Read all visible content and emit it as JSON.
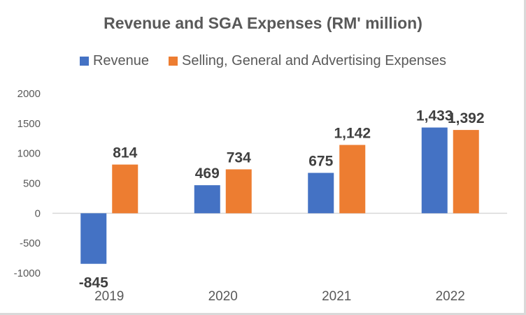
{
  "chart_data": {
    "type": "bar",
    "title": "Revenue and SGA Expenses (RM' million)",
    "xlabel": "",
    "ylabel": "",
    "categories": [
      "2019",
      "2020",
      "2021",
      "2022"
    ],
    "series": [
      {
        "name": "Revenue",
        "color": "#4472c4",
        "values": [
          -845,
          469,
          675,
          1433
        ],
        "labels": [
          "-845",
          "469",
          "675",
          "1,433"
        ]
      },
      {
        "name": "Selling, General and Advertising Expenses",
        "color": "#ed7d31",
        "values": [
          814,
          734,
          1142,
          1392
        ],
        "labels": [
          "814",
          "734",
          "1,142",
          "1,392"
        ]
      }
    ],
    "ylim": [
      -1000,
      2000
    ],
    "yticks": [
      "2000",
      "1500",
      "1000",
      "500",
      "0",
      "-500",
      "-1000"
    ],
    "ytick_values": [
      2000,
      1500,
      1000,
      500,
      0,
      -500,
      -1000
    ],
    "grid": false,
    "legend_position": "top"
  }
}
